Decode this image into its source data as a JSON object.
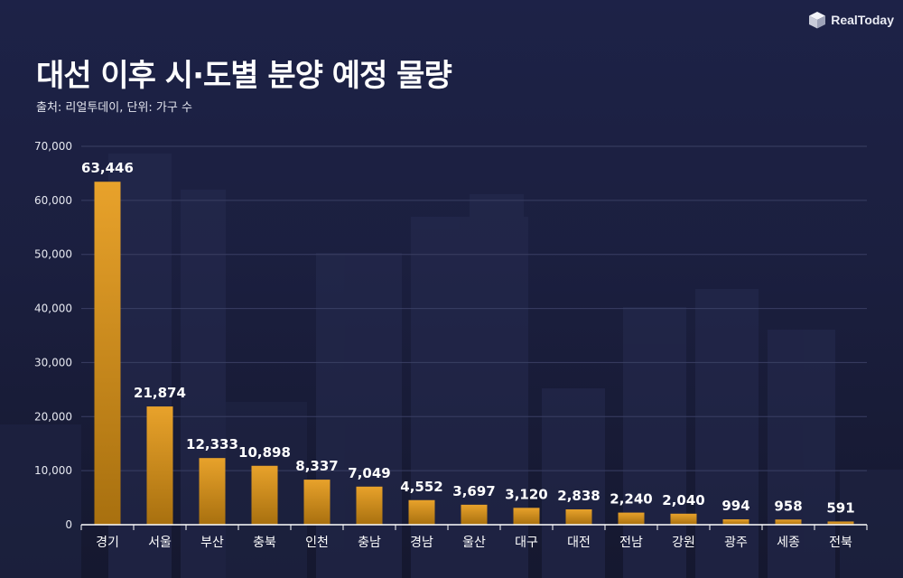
{
  "header": {
    "title": "대선 이후 시·도별 분양 예정 물량",
    "source": "출처: 리얼투데이, 단위: 가구 수",
    "logo_text": "RealToday",
    "logo_icon": "cube-logo-icon"
  },
  "colors": {
    "background": "#1b1f3f",
    "bar_top": "#e8a22b",
    "bar_bottom": "#a8700f",
    "gridline": "#3a3f63",
    "axis": "#ffffff"
  },
  "chart_data": {
    "type": "bar",
    "title": "대선 이후 시·도별 분양 예정 물량",
    "xlabel": "",
    "ylabel": "",
    "ylim": [
      0,
      70000
    ],
    "yticks": [
      0,
      10000,
      20000,
      30000,
      40000,
      50000,
      60000,
      70000
    ],
    "ytick_labels": [
      "0",
      "10,000",
      "20,000",
      "30,000",
      "40,000",
      "50,000",
      "60,000",
      "70,000"
    ],
    "grid": true,
    "legend": "none",
    "categories": [
      "경기",
      "서울",
      "부산",
      "충북",
      "인천",
      "충남",
      "경남",
      "울산",
      "대구",
      "대전",
      "전남",
      "강원",
      "광주",
      "세종",
      "전북"
    ],
    "values": [
      63446,
      21874,
      12333,
      10898,
      8337,
      7049,
      4552,
      3697,
      3120,
      2838,
      2240,
      2040,
      994,
      958,
      591
    ],
    "value_labels": [
      "63,446",
      "21,874",
      "12,333",
      "10,898",
      "8,337",
      "7,049",
      "4,552",
      "3,697",
      "3,120",
      "2,838",
      "2,240",
      "2,040",
      "994",
      "958",
      "591"
    ]
  }
}
